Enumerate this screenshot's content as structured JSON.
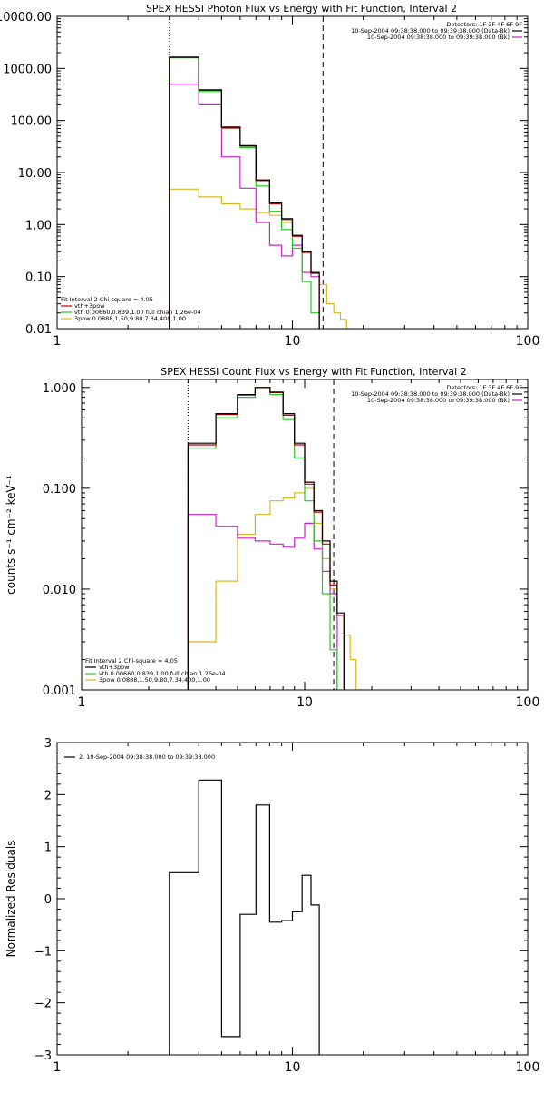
{
  "colors": {
    "black": "#000000",
    "red": "#c00000",
    "green": "#22cc22",
    "magenta": "#cc22cc",
    "yellow": "#d8b820"
  },
  "chart_data": [
    {
      "type": "line",
      "step": true,
      "title": "SPEX HESSI Photon Flux vs Energy with Fit Function, Interval 2",
      "xscale": "log",
      "yscale": "log",
      "xlim": [
        1,
        100
      ],
      "ylim": [
        0.01,
        10000
      ],
      "xticks": [
        {
          "v": 1,
          "label": "1"
        },
        {
          "v": 10,
          "label": "10"
        },
        {
          "v": 100,
          "label": "100"
        }
      ],
      "yticks": [
        {
          "v": 0.01,
          "label": "0.01"
        },
        {
          "v": 0.1,
          "label": "0.10"
        },
        {
          "v": 1,
          "label": "1.00"
        },
        {
          "v": 10,
          "label": "10.00"
        },
        {
          "v": 100,
          "label": "100.00"
        },
        {
          "v": 1000,
          "label": "1000.00"
        },
        {
          "v": 10000,
          "label": "10000.00"
        }
      ],
      "vlines": [
        {
          "x": 3,
          "style": "dotted"
        },
        {
          "x": 13.5,
          "style": "dashed"
        }
      ],
      "bin_edges": [
        3,
        4,
        5,
        6,
        7,
        8,
        9,
        10,
        11,
        12,
        13,
        14,
        15,
        16,
        17,
        18
      ],
      "series": [
        {
          "color": "#000000",
          "values": [
            1650,
            390,
            75,
            33,
            7.2,
            2.6,
            1.3,
            0.62,
            0.3,
            0.12
          ]
        },
        {
          "color": "#c00000",
          "values": [
            1620,
            380,
            73,
            32,
            7.0,
            2.5,
            1.25,
            0.6,
            0.29,
            0.115
          ]
        },
        {
          "color": "#22cc22",
          "values": [
            1600,
            360,
            70,
            30,
            5.5,
            1.8,
            0.8,
            0.35,
            0.08,
            0.02,
            0.009
          ]
        },
        {
          "color": "#cc22cc",
          "values": [
            500,
            200,
            20,
            5,
            1.1,
            0.4,
            0.25,
            0.4,
            0.12,
            0.1
          ]
        },
        {
          "color": "#d8b820",
          "values": [
            4.8,
            3.4,
            2.5,
            2.0,
            1.7,
            1.5,
            1.1,
            0.6,
            0.3,
            0.12,
            0.07,
            0.03,
            0.02,
            0.015,
            0.01
          ]
        }
      ],
      "legend_tr": {
        "position": "top-right",
        "header": "Detectors: 1F 3F 4F 6F 9F",
        "entries": [
          {
            "text": "10-Sep-2004 09:38:38.000 to 09:39:38.000 (Data-Bk)",
            "color": "#000000"
          },
          {
            "text": "10-Sep-2004 09:38:38.000 to 09:39:38.000 (Bk)",
            "color": "#cc22cc"
          }
        ]
      },
      "legend_bl": {
        "position": "bottom-left",
        "header": "Fit Interval 2   Chi-square = 4.05",
        "entries": [
          {
            "text": "vth+3pow",
            "color": "#c00000"
          },
          {
            "text": "vth 0.00660,0.839,1.00   full chian 1.26e-04",
            "color": "#22cc22"
          },
          {
            "text": "3pow 0.0888,1.50,9.80,7.34,400,1.00",
            "color": "#d8b820"
          }
        ]
      }
    },
    {
      "type": "line",
      "step": true,
      "title": "SPEX HESSI Count Flux vs Energy with Fit Function, Interval 2",
      "ylabel": "counts s⁻¹ cm⁻² keV⁻¹",
      "xscale": "log",
      "yscale": "log",
      "xlim": [
        1,
        100
      ],
      "ylim": [
        0.001,
        1.2
      ],
      "xticks": [
        {
          "v": 1,
          "label": "1"
        },
        {
          "v": 10,
          "label": "10"
        },
        {
          "v": 100,
          "label": "100"
        }
      ],
      "yticks": [
        {
          "v": 0.001,
          "label": "0.001"
        },
        {
          "v": 0.01,
          "label": "0.010"
        },
        {
          "v": 0.1,
          "label": "0.100"
        },
        {
          "v": 1,
          "label": "1.000"
        }
      ],
      "vlines": [
        {
          "x": 3,
          "style": "dotted"
        },
        {
          "x": 13.5,
          "style": "dashed"
        }
      ],
      "bin_edges": [
        3,
        4,
        5,
        6,
        7,
        8,
        9,
        10,
        11,
        12,
        13,
        14,
        15,
        16,
        17,
        18
      ],
      "series": [
        {
          "color": "#000000",
          "values": [
            0.28,
            0.55,
            0.85,
            1.0,
            0.9,
            0.55,
            0.28,
            0.115,
            0.06,
            0.03,
            0.012,
            0.0058
          ]
        },
        {
          "color": "#c00000",
          "values": [
            0.27,
            0.54,
            0.84,
            1.0,
            0.89,
            0.53,
            0.27,
            0.11,
            0.058,
            0.028,
            0.011,
            0.0055
          ]
        },
        {
          "color": "#22cc22",
          "values": [
            0.25,
            0.5,
            0.8,
            1.0,
            0.85,
            0.48,
            0.2,
            0.075,
            0.03,
            0.009,
            0.0025
          ]
        },
        {
          "color": "#cc22cc",
          "values": [
            0.055,
            0.042,
            0.032,
            0.03,
            0.028,
            0.026,
            0.032,
            0.045,
            0.025,
            0.015,
            0.009
          ]
        },
        {
          "color": "#d8b820",
          "values": [
            0.003,
            0.012,
            0.035,
            0.055,
            0.075,
            0.08,
            0.09,
            0.1,
            0.045,
            0.02,
            0.01,
            0.0055,
            0.0035,
            0.002,
            0.001
          ]
        }
      ],
      "legend_tr": {
        "position": "top-right",
        "header": "Detectors: 1F 3F 4F 6F 9F",
        "entries": [
          {
            "text": "10-Sep-2004 09:38:38.000 to 09:39:38.000 (Data-Bk)",
            "color": "#000000"
          },
          {
            "text": "10-Sep-2004 09:38:38.000 to 09:39:38.000 (Bk)",
            "color": "#cc22cc"
          }
        ]
      },
      "legend_bl": {
        "position": "bottom-left",
        "header": "Fit Interval 2   Chi-square = 4.05",
        "entries": [
          {
            "text": "vth+3pow",
            "color": "#000000"
          },
          {
            "text": "vth 0.00660,0.839,1.00   full chian 1.26e-04",
            "color": "#22cc22"
          },
          {
            "text": "3pow 0.0888,1.50,9.80,7.34,400,1.00",
            "color": "#d8b820"
          }
        ]
      }
    },
    {
      "type": "line",
      "step": true,
      "title": "",
      "ylabel": "Normalized Residuals",
      "xscale": "log",
      "yscale": "linear",
      "xlim": [
        1,
        100
      ],
      "ylim": [
        -3,
        3
      ],
      "xticks": [
        {
          "v": 1,
          "label": "1"
        },
        {
          "v": 10,
          "label": "10"
        },
        {
          "v": 100,
          "label": "100"
        }
      ],
      "yticks": [
        {
          "v": -3,
          "label": "−3"
        },
        {
          "v": -2,
          "label": "−2"
        },
        {
          "v": -1,
          "label": "−1"
        },
        {
          "v": 0,
          "label": "0"
        },
        {
          "v": 1,
          "label": "1"
        },
        {
          "v": 2,
          "label": "2"
        },
        {
          "v": 3,
          "label": "3"
        }
      ],
      "bin_edges": [
        3,
        4,
        5,
        6,
        7,
        8,
        9,
        10,
        11,
        12,
        13,
        14
      ],
      "series": [
        {
          "color": "#000000",
          "values": [
            0.5,
            2.28,
            -2.65,
            -0.3,
            1.8,
            -0.45,
            -0.42,
            -0.25,
            0.45,
            -0.12
          ]
        }
      ],
      "legend_tl": {
        "position": "top-left",
        "entries": [
          {
            "text": "2. 10-Sep-2004 09:38:38.000 to 09:39:38.000",
            "color": "#000000"
          }
        ]
      }
    }
  ]
}
